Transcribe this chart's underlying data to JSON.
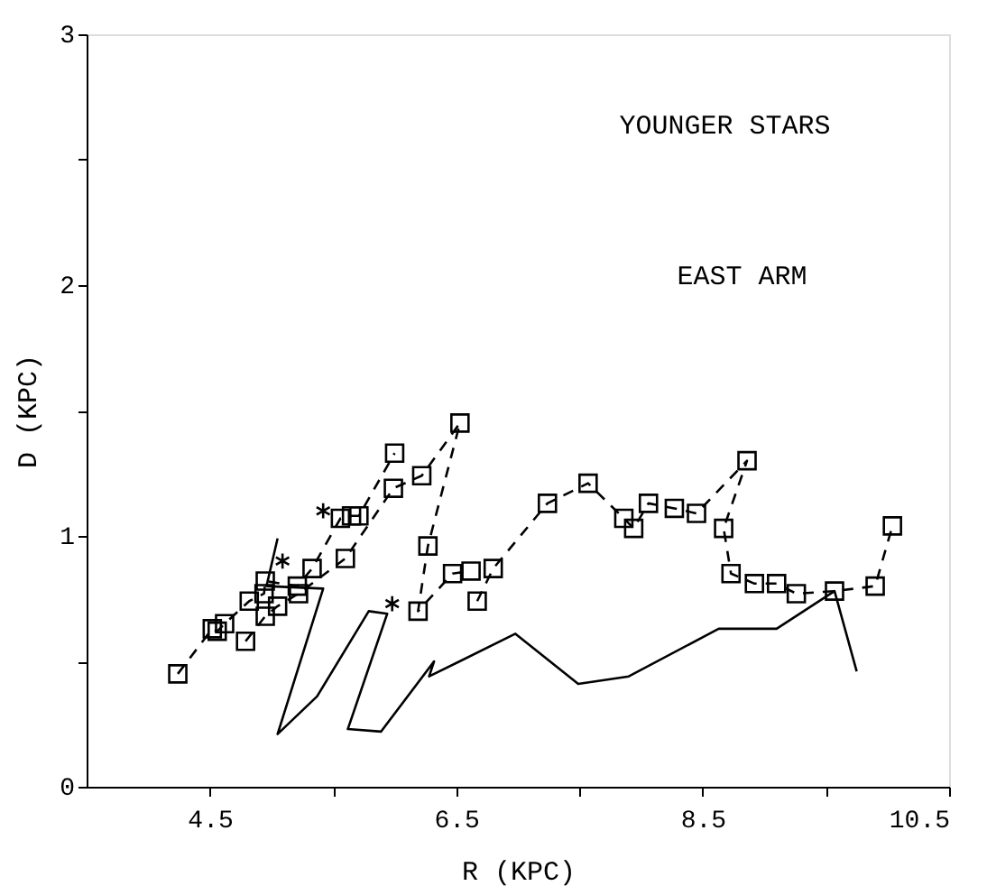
{
  "chart_data": {
    "type": "line",
    "xlabel": "R (KPC)",
    "ylabel": "D (KPC)",
    "annotations": [
      "YOUNGER STARS",
      "EAST ARM"
    ],
    "xlim": [
      3.5,
      10.5
    ],
    "ylim": [
      0,
      3
    ],
    "xticks": [
      4.5,
      {
        "value": 5.5,
        "label": null
      },
      6.5,
      {
        "value": 7.5,
        "label": null
      },
      8.5,
      {
        "value": 9.5,
        "label": null
      },
      10.5
    ],
    "yticks": [
      0,
      {
        "value": 0.5,
        "label": null
      },
      1,
      {
        "value": 1.5,
        "label": null
      },
      2,
      {
        "value": 2.5,
        "label": null
      },
      3
    ],
    "grid": false,
    "series": [
      {
        "color": "#000000",
        "marker": "square",
        "line_style": "dashed",
        "x": [
          4.24,
          4.52,
          4.56,
          4.62,
          4.82,
          4.94,
          4.95,
          5.21,
          5.33,
          5.56,
          5.65,
          5.71,
          6.0
        ],
        "values": [
          0.45,
          0.63,
          0.62,
          0.65,
          0.74,
          0.77,
          0.82,
          0.8,
          0.87,
          1.07,
          1.08,
          1.08,
          1.33
        ]
      },
      {
        "color": "#000000",
        "marker": "square",
        "line_style": "dashed",
        "x": [
          4.79,
          4.95,
          5.05,
          5.22,
          5.6,
          5.99,
          6.22,
          6.53,
          6.27,
          6.19,
          6.47,
          6.62
        ],
        "values": [
          0.58,
          0.68,
          0.72,
          0.77,
          0.91,
          1.19,
          1.24,
          1.45,
          0.96,
          0.7,
          0.85,
          0.86
        ]
      },
      {
        "color": "#000000",
        "marker": "square",
        "line_style": "dashed",
        "x": [
          6.67,
          6.8,
          7.24,
          7.57,
          7.86,
          7.94,
          8.06,
          8.27,
          8.45,
          8.86,
          8.67,
          8.73,
          8.92,
          9.1,
          9.26,
          9.57,
          9.9,
          10.04
        ],
        "values": [
          0.74,
          0.87,
          1.13,
          1.21,
          1.07,
          1.03,
          1.13,
          1.11,
          1.09,
          1.3,
          1.03,
          0.85,
          0.81,
          0.81,
          0.77,
          0.78,
          0.8,
          1.04
        ]
      },
      {
        "type": "scatter",
        "color": "#000000",
        "marker": "cross",
        "x": [
          5.09,
          5.42,
          5.98
        ],
        "values": [
          0.9,
          1.1,
          0.73
        ]
      },
      {
        "color": "#000000",
        "marker": "none",
        "line_style": "solid",
        "x": [
          5.05,
          4.96,
          5.42,
          5.05,
          5.37,
          5.79,
          5.94,
          5.62,
          5.89,
          6.32,
          6.28,
          6.98,
          7.49,
          7.9,
          8.63,
          9.1,
          9.57,
          9.75
        ],
        "values": [
          0.99,
          0.8,
          0.79,
          0.21,
          0.36,
          0.7,
          0.69,
          0.23,
          0.22,
          0.5,
          0.44,
          0.61,
          0.41,
          0.44,
          0.63,
          0.63,
          0.78,
          0.46
        ]
      }
    ]
  }
}
